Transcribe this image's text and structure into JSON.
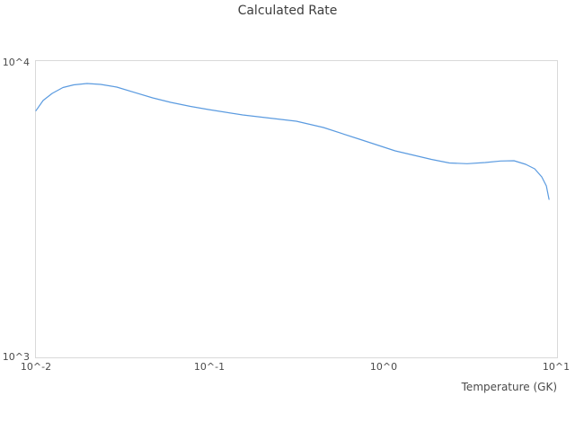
{
  "chart_data": {
    "type": "line",
    "title": "Calculated Rate",
    "xlabel": "Temperature (GK)",
    "ylabel": "",
    "x_scale": "log",
    "y_scale": "log",
    "xlim": [
      0.01,
      10
    ],
    "ylim": [
      1000,
      10000
    ],
    "x_tick_labels": [
      "10^-2",
      "10^-1",
      "10^0",
      "10^1"
    ],
    "y_tick_labels_bottom_to_top": [
      "10^3",
      "10^4"
    ],
    "grid": false,
    "legend": "none",
    "colors": {
      "line": "#5b9be0",
      "axis_border": "#d9d9d9",
      "title_text": "#3d3d3d",
      "tick_text": "#4a4a4a"
    },
    "series": [
      {
        "name": "calculated-rate",
        "x": [
          0.01,
          0.011,
          0.0124,
          0.0143,
          0.0165,
          0.0197,
          0.0236,
          0.0292,
          0.0371,
          0.047,
          0.0597,
          0.0776,
          0.0985,
          0.155,
          0.221,
          0.316,
          0.452,
          0.728,
          1.17,
          1.89,
          2.4,
          3.04,
          3.86,
          4.73,
          5.65,
          6.6,
          7.43,
          8.17,
          8.68,
          8.99
        ],
        "y": [
          6800,
          7360,
          7780,
          8140,
          8310,
          8400,
          8340,
          8170,
          7830,
          7510,
          7255,
          7030,
          6860,
          6580,
          6420,
          6265,
          5966,
          5450,
          4977,
          4658,
          4530,
          4504,
          4546,
          4600,
          4610,
          4483,
          4330,
          4066,
          3791,
          3414
        ]
      }
    ]
  }
}
